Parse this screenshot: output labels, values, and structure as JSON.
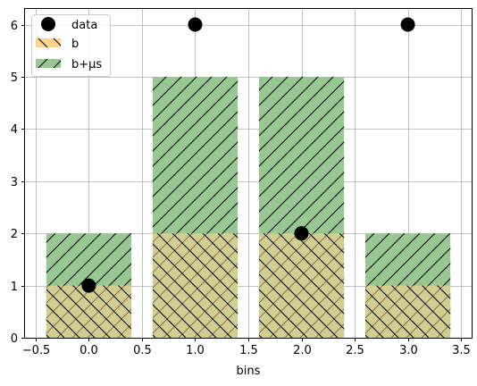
{
  "chart_data": {
    "type": "bar",
    "title": "",
    "xlabel": "bins",
    "ylabel": "",
    "xlim": [
      -0.6,
      3.6
    ],
    "ylim": [
      0,
      6.3
    ],
    "x": [
      0,
      1,
      2,
      3
    ],
    "bar_width": 0.8,
    "x_ticks": [
      -0.5,
      0.0,
      0.5,
      1.0,
      1.5,
      2.0,
      2.5,
      3.0,
      3.5
    ],
    "x_tick_labels": [
      "−0.5",
      "0.0",
      "0.5",
      "1.0",
      "1.5",
      "2.0",
      "2.5",
      "3.0",
      "3.5"
    ],
    "y_ticks": [
      0,
      1,
      2,
      3,
      4,
      5,
      6
    ],
    "y_tick_labels": [
      "0",
      "1",
      "2",
      "3",
      "4",
      "5",
      "6"
    ],
    "grid": true,
    "legend_position": "top-left",
    "series": [
      {
        "name": "data",
        "kind": "scatter",
        "values": [
          1,
          6,
          2,
          6
        ],
        "color": "#000000"
      },
      {
        "name": "b",
        "kind": "bar",
        "hatch": "backslash",
        "values": [
          1,
          2,
          2,
          1
        ],
        "color": "#ffd38c"
      },
      {
        "name": "b+μs",
        "kind": "bar",
        "hatch": "slash",
        "values": [
          2,
          5,
          5,
          2
        ],
        "color": "#98c794"
      }
    ]
  }
}
